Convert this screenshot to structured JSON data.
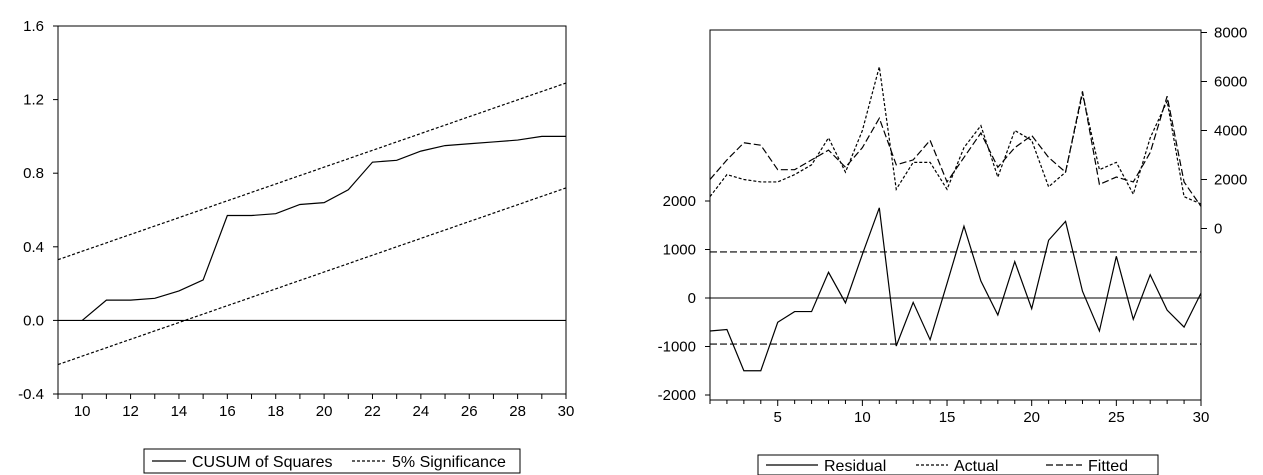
{
  "chart_data": [
    {
      "type": "line",
      "title": "",
      "xlabel": "",
      "ylabel": "",
      "xlim": [
        9,
        30
      ],
      "ylim": [
        -0.4,
        1.6
      ],
      "x_ticks": [
        "10",
        "12",
        "14",
        "16",
        "18",
        "20",
        "22",
        "24",
        "26",
        "28",
        "30"
      ],
      "y_ticks": [
        "-0.4",
        "0.0",
        "0.4",
        "0.8",
        "1.2",
        "1.6"
      ],
      "legend_position": "bottom",
      "series": [
        {
          "name": "CUSUM of Squares",
          "style": "solid",
          "points": [
            [
              10,
              0.0
            ],
            [
              11,
              0.11
            ],
            [
              12,
              0.11
            ],
            [
              13,
              0.12
            ],
            [
              14,
              0.16
            ],
            [
              15,
              0.22
            ],
            [
              16,
              0.57
            ],
            [
              17,
              0.57
            ],
            [
              18,
              0.58
            ],
            [
              19,
              0.63
            ],
            [
              20,
              0.64
            ],
            [
              21,
              0.71
            ],
            [
              22,
              0.86
            ],
            [
              23,
              0.87
            ],
            [
              24,
              0.92
            ],
            [
              25,
              0.95
            ],
            [
              26,
              0.96
            ],
            [
              27,
              0.97
            ],
            [
              28,
              0.98
            ],
            [
              29,
              1.0
            ],
            [
              30,
              1.0
            ]
          ]
        },
        {
          "name": "5% Significance",
          "style": "dashed",
          "points": [
            [
              9,
              0.33
            ],
            [
              30,
              1.29
            ]
          ]
        },
        {
          "name": "",
          "style": "dashed",
          "points": [
            [
              9,
              -0.24
            ],
            [
              30,
              0.72
            ]
          ]
        }
      ],
      "reference_lines": [
        {
          "y": 0.0,
          "style": "solid"
        }
      ]
    },
    {
      "type": "line",
      "title": "",
      "xlabel": "",
      "ylabel": "",
      "xlim": [
        1,
        30
      ],
      "x_ticks": [
        "5",
        "10",
        "15",
        "20",
        "25",
        "30"
      ],
      "left_axis": {
        "range": [
          -2000,
          2000
        ],
        "ticks": [
          "-2000",
          "-1000",
          "0",
          "1000",
          "2000"
        ]
      },
      "right_axis": {
        "range": [
          -2000,
          8000
        ],
        "ticks": [
          "0",
          "2000",
          "4000",
          "6000",
          "8000"
        ]
      },
      "legend_position": "bottom",
      "series": [
        {
          "name": "Residual",
          "axis": "left",
          "style": "solid",
          "x": [
            1,
            2,
            3,
            4,
            5,
            6,
            7,
            8,
            9,
            10,
            11,
            12,
            13,
            14,
            15,
            16,
            17,
            18,
            19,
            20,
            21,
            22,
            23,
            24,
            25,
            26,
            27,
            28,
            29,
            30
          ],
          "values": [
            -680,
            -650,
            -1500,
            -1500,
            -500,
            -280,
            -280,
            530,
            -100,
            900,
            1860,
            -990,
            -90,
            -860,
            300,
            1480,
            350,
            -350,
            750,
            -220,
            1190,
            1580,
            140,
            -680,
            860,
            -440,
            480,
            -250,
            -600,
            100
          ]
        },
        {
          "name": "Actual",
          "axis": "right",
          "style": "dashed",
          "x": [
            1,
            2,
            3,
            4,
            5,
            6,
            7,
            8,
            9,
            10,
            11,
            12,
            13,
            14,
            15,
            16,
            17,
            18,
            19,
            20,
            21,
            22,
            23,
            24,
            25,
            26,
            27,
            28,
            29,
            30
          ],
          "values": [
            1300,
            2200,
            2000,
            1900,
            1900,
            2200,
            2600,
            3700,
            2300,
            4000,
            6600,
            1600,
            2700,
            2700,
            1600,
            3300,
            4200,
            2100,
            4000,
            3600,
            1700,
            2300,
            5500,
            2400,
            2700,
            1400,
            3700,
            5200,
            1300,
            1000
          ]
        },
        {
          "name": "Fitted",
          "axis": "right",
          "style": "long-dashed",
          "x": [
            1,
            2,
            3,
            4,
            5,
            6,
            7,
            8,
            9,
            10,
            11,
            12,
            13,
            14,
            15,
            16,
            17,
            18,
            19,
            20,
            21,
            22,
            23,
            24,
            25,
            26,
            27,
            28,
            29,
            30
          ],
          "values": [
            2000,
            2800,
            3500,
            3400,
            2400,
            2400,
            2800,
            3200,
            2500,
            3300,
            4500,
            2600,
            2800,
            3600,
            1900,
            2900,
            3900,
            2500,
            3300,
            3800,
            2900,
            2300,
            5600,
            1800,
            2100,
            1900,
            3100,
            5400,
            1900,
            900
          ]
        }
      ],
      "reference_lines": [
        {
          "axis": "left",
          "y": 0,
          "style": "solid"
        },
        {
          "axis": "left",
          "y": 950,
          "style": "dashed"
        },
        {
          "axis": "left",
          "y": -950,
          "style": "dashed"
        }
      ]
    }
  ]
}
